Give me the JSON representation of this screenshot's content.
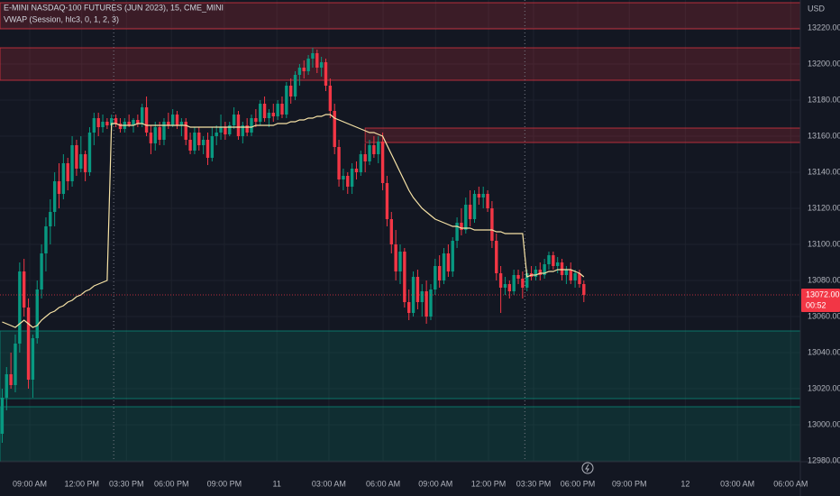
{
  "chart_data": {
    "type": "candlestick",
    "title": "E-MINI NASDAQ-100 FUTURES (JUN 2023), 15, CME_MINI",
    "subtitle": "VWAP (Session, hlc3, 0, 1, 2, 3)",
    "currency": "USD",
    "countdown": "00:52",
    "last_price": {
      "value": 13072,
      "label": "13072.00"
    },
    "up_color": "#089981",
    "down_color": "#f23645",
    "vwap_color": "#f7e3a6",
    "grid": true,
    "xlim": [
      -0.5,
      182.5
    ],
    "ylim": [
      12979.5,
      13235.5
    ],
    "yticks": [
      {
        "value": 12980,
        "label": "12980.00"
      },
      {
        "value": 13000,
        "label": "13000.00"
      },
      {
        "value": 13020,
        "label": "13020.00"
      },
      {
        "value": 13040,
        "label": "13040.00"
      },
      {
        "value": 13060,
        "label": "13060.00"
      },
      {
        "value": 13080,
        "label": "13080.00"
      },
      {
        "value": 13100,
        "label": "13100.00"
      },
      {
        "value": 13120,
        "label": "13120.00"
      },
      {
        "value": 13140,
        "label": "13140.00"
      },
      {
        "value": 13160,
        "label": "13160.00"
      },
      {
        "value": 13180,
        "label": "13180.00"
      },
      {
        "value": 13200,
        "label": "13200.00"
      },
      {
        "value": 13220,
        "label": "13220.00"
      }
    ],
    "xticks": [
      {
        "value": 6.3,
        "label": "09:00 AM"
      },
      {
        "value": 18.2,
        "label": "12:00 PM"
      },
      {
        "value": 28.4,
        "label": "03:30 PM"
      },
      {
        "value": 38.7,
        "label": "06:00 PM"
      },
      {
        "value": 50.8,
        "label": "09:00 PM"
      },
      {
        "value": 62.8,
        "label": "11"
      },
      {
        "value": 74.7,
        "label": "03:00 AM"
      },
      {
        "value": 87.1,
        "label": "06:00 AM"
      },
      {
        "value": 99.1,
        "label": "09:00 AM"
      },
      {
        "value": 111.2,
        "label": "12:00 PM"
      },
      {
        "value": 121.5,
        "label": "03:30 PM"
      },
      {
        "value": 131.6,
        "label": "06:00 PM"
      },
      {
        "value": 143.4,
        "label": "09:00 PM"
      },
      {
        "value": 156.2,
        "label": "12"
      },
      {
        "value": 168.1,
        "label": "03:00 AM"
      },
      {
        "value": 180.3,
        "label": "06:00 AM"
      }
    ],
    "session_breaks": [
      25.5,
      119.5
    ],
    "zones": [
      {
        "low": 13219.5,
        "high": 13234,
        "start": -0.5,
        "color": "#f23645"
      },
      {
        "low": 13191,
        "high": 13209,
        "start": -0.5,
        "color": "#f23645"
      },
      {
        "low": 13156.5,
        "high": 13164.5,
        "start": 83,
        "color": "#f23645"
      },
      {
        "low": 13014.5,
        "high": 13052,
        "start": -0.5,
        "color": "#089981"
      },
      {
        "low": 12979.5,
        "high": 13010,
        "start": -0.5,
        "color": "#089981"
      }
    ],
    "ohlc": [
      [
        12995,
        13020,
        12990,
        13015
      ],
      [
        13015,
        13032,
        13008,
        13028
      ],
      [
        13028,
        13040,
        13020,
        13022
      ],
      [
        13022,
        13050,
        13018,
        13045
      ],
      [
        13045,
        13090,
        13040,
        13085
      ],
      [
        13085,
        13092,
        13060,
        13065
      ],
      [
        13065,
        13070,
        13020,
        13025
      ],
      [
        13025,
        13050,
        13015,
        13048
      ],
      [
        13048,
        13080,
        13045,
        13075
      ],
      [
        13075,
        13100,
        13070,
        13095
      ],
      [
        13095,
        13115,
        13085,
        13110
      ],
      [
        13110,
        13125,
        13100,
        13118
      ],
      [
        13118,
        13140,
        13110,
        13135
      ],
      [
        13135,
        13145,
        13120,
        13128
      ],
      [
        13128,
        13150,
        13125,
        13145
      ],
      [
        13145,
        13148,
        13130,
        13135
      ],
      [
        13135,
        13160,
        13132,
        13155
      ],
      [
        13155,
        13158,
        13138,
        13142
      ],
      [
        13142,
        13160,
        13140,
        13150
      ],
      [
        13150,
        13152,
        13135,
        13140
      ],
      [
        13140,
        13165,
        13138,
        13162
      ],
      [
        13162,
        13173,
        13155,
        13170
      ],
      [
        13170,
        13173,
        13160,
        13165
      ],
      [
        13165,
        13172,
        13162,
        13168
      ],
      [
        13168,
        13170,
        13164,
        13166
      ],
      [
        13166,
        13172,
        13163,
        13170
      ],
      [
        13170,
        13172,
        13165,
        13167
      ],
      [
        13167,
        13170,
        13162,
        13164
      ],
      [
        13164,
        13170,
        13162,
        13168
      ],
      [
        13168,
        13172,
        13165,
        13166
      ],
      [
        13166,
        13170,
        13162,
        13169
      ],
      [
        13169,
        13172,
        13165,
        13167
      ],
      [
        13167,
        13178,
        13165,
        13176
      ],
      [
        13176,
        13182,
        13160,
        13162
      ],
      [
        13162,
        13166,
        13150,
        13156
      ],
      [
        13156,
        13168,
        13152,
        13165
      ],
      [
        13165,
        13168,
        13155,
        13158
      ],
      [
        13158,
        13170,
        13155,
        13168
      ],
      [
        13168,
        13173,
        13164,
        13166
      ],
      [
        13166,
        13175,
        13165,
        13172
      ],
      [
        13172,
        13174,
        13164,
        13166
      ],
      [
        13166,
        13170,
        13160,
        13168
      ],
      [
        13168,
        13170,
        13155,
        13158
      ],
      [
        13158,
        13162,
        13150,
        13152
      ],
      [
        13152,
        13165,
        13150,
        13162
      ],
      [
        13162,
        13165,
        13152,
        13155
      ],
      [
        13155,
        13160,
        13150,
        13158
      ],
      [
        13158,
        13162,
        13144,
        13148
      ],
      [
        13148,
        13165,
        13146,
        13160
      ],
      [
        13160,
        13166,
        13155,
        13162
      ],
      [
        13162,
        13172,
        13158,
        13165
      ],
      [
        13165,
        13168,
        13158,
        13161
      ],
      [
        13161,
        13168,
        13160,
        13166
      ],
      [
        13166,
        13176,
        13164,
        13172
      ],
      [
        13172,
        13174,
        13158,
        13160
      ],
      [
        13160,
        13168,
        13156,
        13166
      ],
      [
        13166,
        13170,
        13160,
        13162
      ],
      [
        13162,
        13172,
        13160,
        13170
      ],
      [
        13170,
        13175,
        13165,
        13168
      ],
      [
        13168,
        13180,
        13166,
        13178
      ],
      [
        13178,
        13182,
        13168,
        13170
      ],
      [
        13170,
        13175,
        13165,
        13173
      ],
      [
        13173,
        13178,
        13168,
        13171
      ],
      [
        13171,
        13180,
        13169,
        13178
      ],
      [
        13178,
        13182,
        13170,
        13172
      ],
      [
        13172,
        13190,
        13170,
        13188
      ],
      [
        13188,
        13192,
        13178,
        13182
      ],
      [
        13182,
        13196,
        13180,
        13194
      ],
      [
        13194,
        13200,
        13188,
        13198
      ],
      [
        13198,
        13202,
        13192,
        13196
      ],
      [
        13196,
        13205,
        13194,
        13203
      ],
      [
        13203,
        13209,
        13198,
        13206
      ],
      [
        13206,
        13208,
        13195,
        13198
      ],
      [
        13198,
        13204,
        13193,
        13201
      ],
      [
        13201,
        13203,
        13185,
        13188
      ],
      [
        13188,
        13192,
        13170,
        13174
      ],
      [
        13174,
        13178,
        13150,
        13154
      ],
      [
        13154,
        13158,
        13132,
        13136
      ],
      [
        13136,
        13142,
        13130,
        13138
      ],
      [
        13138,
        13140,
        13128,
        13132
      ],
      [
        13132,
        13145,
        13128,
        13142
      ],
      [
        13142,
        13146,
        13136,
        13140
      ],
      [
        13140,
        13152,
        13138,
        13150
      ],
      [
        13150,
        13156,
        13140,
        13146
      ],
      [
        13146,
        13158,
        13144,
        13155
      ],
      [
        13155,
        13160,
        13148,
        13150
      ],
      [
        13150,
        13160,
        13145,
        13157
      ],
      [
        13157,
        13162,
        13130,
        13134
      ],
      [
        13134,
        13138,
        13110,
        13114
      ],
      [
        13114,
        13118,
        13095,
        13100
      ],
      [
        13100,
        13108,
        13080,
        13085
      ],
      [
        13085,
        13100,
        13078,
        13096
      ],
      [
        13096,
        13098,
        13065,
        13068
      ],
      [
        13068,
        13075,
        13058,
        13062
      ],
      [
        13062,
        13085,
        13060,
        13082
      ],
      [
        13082,
        13086,
        13064,
        13068
      ],
      [
        13068,
        13078,
        13060,
        13074
      ],
      [
        13074,
        13080,
        13056,
        13060
      ],
      [
        13060,
        13078,
        13058,
        13075
      ],
      [
        13075,
        13092,
        13072,
        13088
      ],
      [
        13088,
        13094,
        13076,
        13080
      ],
      [
        13080,
        13098,
        13078,
        13095
      ],
      [
        13095,
        13100,
        13082,
        13085
      ],
      [
        13085,
        13104,
        13082,
        13102
      ],
      [
        13102,
        13115,
        13098,
        13112
      ],
      [
        13112,
        13120,
        13105,
        13108
      ],
      [
        13108,
        13126,
        13106,
        13122
      ],
      [
        13122,
        13130,
        13110,
        13114
      ],
      [
        13114,
        13130,
        13112,
        13128
      ],
      [
        13128,
        13132,
        13122,
        13126
      ],
      [
        13126,
        13132,
        13120,
        13128
      ],
      [
        13128,
        13130,
        13118,
        13120
      ],
      [
        13120,
        13124,
        13098,
        13102
      ],
      [
        13102,
        13106,
        13080,
        13084
      ],
      [
        13084,
        13088,
        13062,
        13076
      ],
      [
        13076,
        13082,
        13072,
        13078
      ],
      [
        13078,
        13080,
        13070,
        13074
      ],
      [
        13074,
        13086,
        13072,
        13083
      ],
      [
        13083,
        13086,
        13078,
        13081
      ],
      [
        13081,
        13085,
        13070,
        13076
      ],
      [
        13076,
        13086,
        13074,
        13084
      ],
      [
        13084,
        13088,
        13080,
        13082
      ],
      [
        13082,
        13088,
        13080,
        13086
      ],
      [
        13086,
        13090,
        13080,
        13083
      ],
      [
        13083,
        13092,
        13081,
        13089
      ],
      [
        13089,
        13096,
        13086,
        13094
      ],
      [
        13094,
        13096,
        13086,
        13088
      ],
      [
        13088,
        13093,
        13084,
        13090
      ],
      [
        13090,
        13092,
        13080,
        13083
      ],
      [
        13083,
        13088,
        13078,
        13086
      ],
      [
        13086,
        13090,
        13078,
        13080
      ],
      [
        13080,
        13086,
        13076,
        13084
      ],
      [
        13084,
        13086,
        13076,
        13078
      ],
      [
        13078,
        13080,
        13068,
        13072
      ]
    ],
    "vwap": [
      13057,
      13056,
      13055,
      13054,
      13056,
      13058,
      13056,
      13054,
      13055,
      13058,
      13060,
      13062,
      13063,
      13065,
      13066,
      13068,
      13069,
      13071,
      13072,
      13074,
      13075,
      13077,
      13078,
      13079,
      13080,
      13167,
      13167,
      13166,
      13166,
      13166,
      13166,
      13167,
      13167,
      13166,
      13166,
      13166,
      13166,
      13166,
      13166,
      13166,
      13166,
      13166,
      13166,
      13165,
      13165,
      13165,
      13165,
      13165,
      13165,
      13165,
      13165,
      13165,
      13165,
      13165,
      13165,
      13165,
      13165,
      13165,
      13166,
      13166,
      13166,
      13166,
      13166,
      13167,
      13167,
      13167,
      13168,
      13168,
      13169,
      13169,
      13170,
      13170,
      13171,
      13171,
      13172,
      13172,
      13170,
      13169,
      13168,
      13167,
      13166,
      13165,
      13164,
      13163,
      13162,
      13162,
      13161,
      13160,
      13155,
      13150,
      13145,
      13140,
      13135,
      13130,
      13126,
      13123,
      13120,
      13118,
      13116,
      13114,
      13113,
      13112,
      13111,
      13110,
      13110,
      13109,
      13109,
      13109,
      13108,
      13108,
      13108,
      13108,
      13108,
      13107,
      13107,
      13106,
      13106,
      13106,
      13106,
      13106,
      13082,
      13083,
      13083,
      13084,
      13084,
      13085,
      13085,
      13086,
      13086,
      13086,
      13086,
      13085,
      13084,
      13082
    ]
  }
}
